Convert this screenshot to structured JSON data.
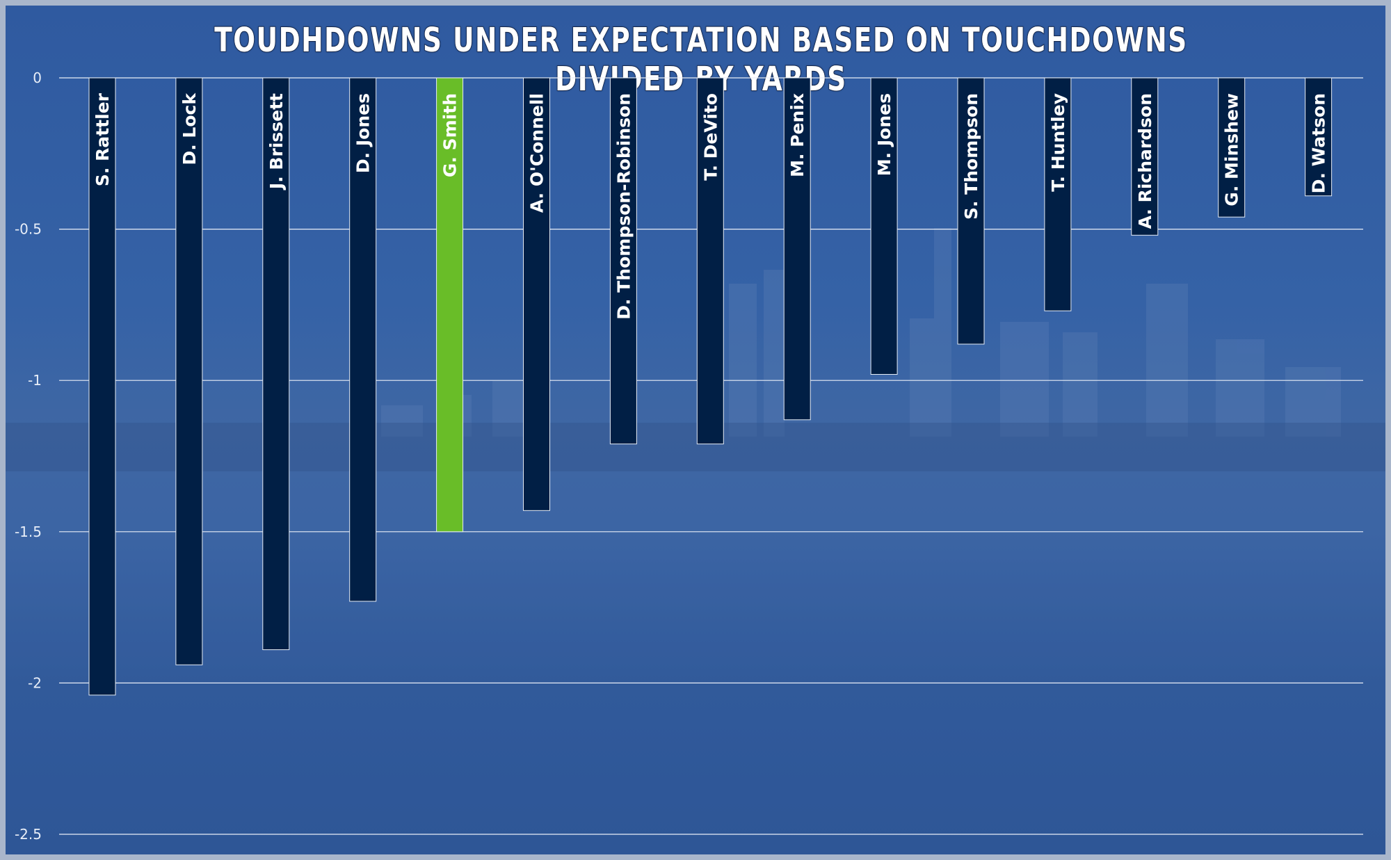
{
  "chart_data": {
    "type": "bar",
    "title": "TOUDHDOWNS UNDER EXPECTATION BASED ON TOUCHDOWNS DIVIDED BY YARDS",
    "xlabel": "",
    "ylabel": "",
    "ylim": [
      -2.5,
      0
    ],
    "yticks": [
      "0",
      "-0.5",
      "-1",
      "-1.5",
      "-2",
      "-2.5"
    ],
    "ytick_values": [
      0,
      -0.5,
      -1,
      -1.5,
      -2,
      -2.5
    ],
    "grid": true,
    "legend": "none",
    "categories": [
      "S. Rattler",
      "D. Lock",
      "J. Brissett",
      "D. Jones",
      "G. Smith",
      "A. O'Connell",
      "D. Thompson-Robinson",
      "T. DeVito",
      "M. Penix",
      "M. Jones",
      "S. Thompson",
      "T. Huntley",
      "A. Richardson",
      "G. Minshew",
      "D. Watson"
    ],
    "values": [
      -2.04,
      -1.94,
      -1.89,
      -1.73,
      -1.5,
      -1.43,
      -1.21,
      -1.21,
      -1.13,
      -0.98,
      -0.88,
      -0.77,
      -0.52,
      -0.46,
      -0.39
    ],
    "highlight_index": 4,
    "colors": {
      "bar": "#011f45",
      "highlight": "#69bd28",
      "bar_border": "#e6ecf5",
      "grid": "#e9eef7",
      "background": "#3a5d9c",
      "frame": "#a9b6cb"
    }
  }
}
